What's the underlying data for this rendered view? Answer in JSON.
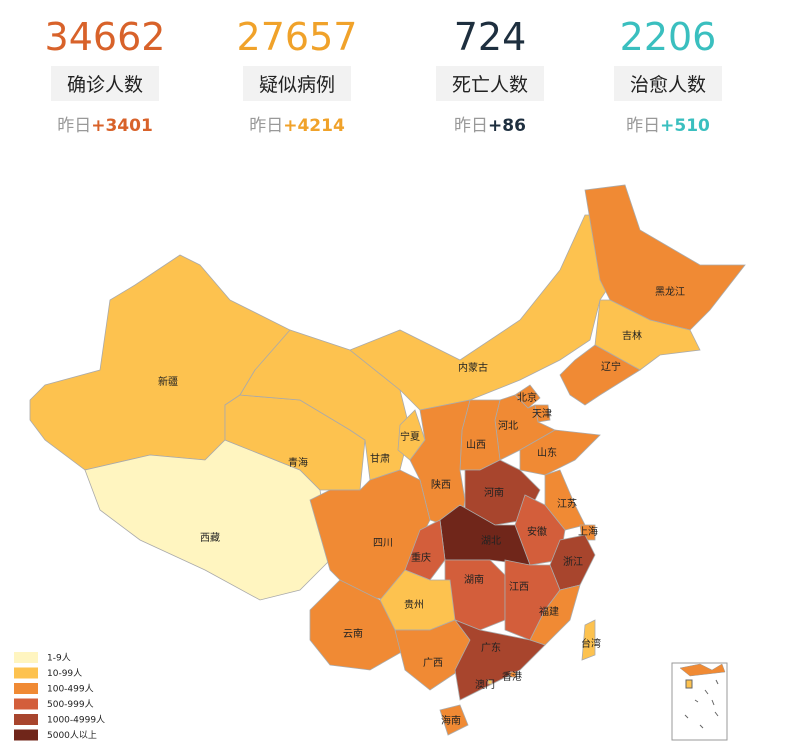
{
  "stats": [
    {
      "value": "34662",
      "label": "确诊人数",
      "yesterday": "昨日",
      "delta": "+3401",
      "color": "#d8622a"
    },
    {
      "value": "27657",
      "label": "疑似病例",
      "yesterday": "昨日",
      "delta": "+4214",
      "color": "#f0a22a"
    },
    {
      "value": "724",
      "label": "死亡人数",
      "yesterday": "昨日",
      "delta": "+86",
      "color": "#1e2f3f"
    },
    {
      "value": "2206",
      "label": "治愈人数",
      "yesterday": "昨日",
      "delta": "+510",
      "color": "#3abfbf"
    }
  ],
  "legend": [
    {
      "label": "1-9人",
      "color": "#fff5c0"
    },
    {
      "label": "10-99人",
      "color": "#fdc24f"
    },
    {
      "label": "100-499人",
      "color": "#f08a34"
    },
    {
      "label": "500-999人",
      "color": "#d35e3b"
    },
    {
      "label": "1000-4999人",
      "color": "#a8452d"
    },
    {
      "label": "5000人以上",
      "color": "#70261a"
    }
  ],
  "provinces": [
    {
      "name": "新疆",
      "color": "#fdc24f"
    },
    {
      "name": "西藏",
      "color": "#fff5c0"
    },
    {
      "name": "青海",
      "color": "#fdc24f"
    },
    {
      "name": "甘肃",
      "color": "#fdc24f"
    },
    {
      "name": "内蒙古",
      "color": "#fdc24f"
    },
    {
      "name": "黑龙江",
      "color": "#f08a34"
    },
    {
      "name": "吉林",
      "color": "#fdc24f"
    },
    {
      "name": "辽宁",
      "color": "#f08a34"
    },
    {
      "name": "北京",
      "color": "#f08a34"
    },
    {
      "name": "天津",
      "color": "#f08a34"
    },
    {
      "name": "河北",
      "color": "#f08a34"
    },
    {
      "name": "山西",
      "color": "#f08a34"
    },
    {
      "name": "宁夏",
      "color": "#fdc24f"
    },
    {
      "name": "陕西",
      "color": "#f08a34"
    },
    {
      "name": "山东",
      "color": "#f08a34"
    },
    {
      "name": "河南",
      "color": "#a8452d"
    },
    {
      "name": "江苏",
      "color": "#f08a34"
    },
    {
      "name": "上海",
      "color": "#f08a34"
    },
    {
      "name": "安徽",
      "color": "#d35e3b"
    },
    {
      "name": "湖北",
      "color": "#70261a"
    },
    {
      "name": "浙江",
      "color": "#a8452d"
    },
    {
      "name": "四川",
      "color": "#f08a34"
    },
    {
      "name": "重庆",
      "color": "#d35e3b"
    },
    {
      "name": "湖南",
      "color": "#d35e3b"
    },
    {
      "name": "江西",
      "color": "#d35e3b"
    },
    {
      "name": "贵州",
      "color": "#fdc24f"
    },
    {
      "name": "云南",
      "color": "#f08a34"
    },
    {
      "name": "福建",
      "color": "#f08a34"
    },
    {
      "name": "台湾",
      "color": "#fdc24f"
    },
    {
      "name": "广西",
      "color": "#f08a34"
    },
    {
      "name": "广东",
      "color": "#a8452d"
    },
    {
      "name": "香港",
      "color": "#f08a34"
    },
    {
      "name": "澳门",
      "color": "#fdc24f"
    },
    {
      "name": "海南",
      "color": "#f08a34"
    }
  ]
}
